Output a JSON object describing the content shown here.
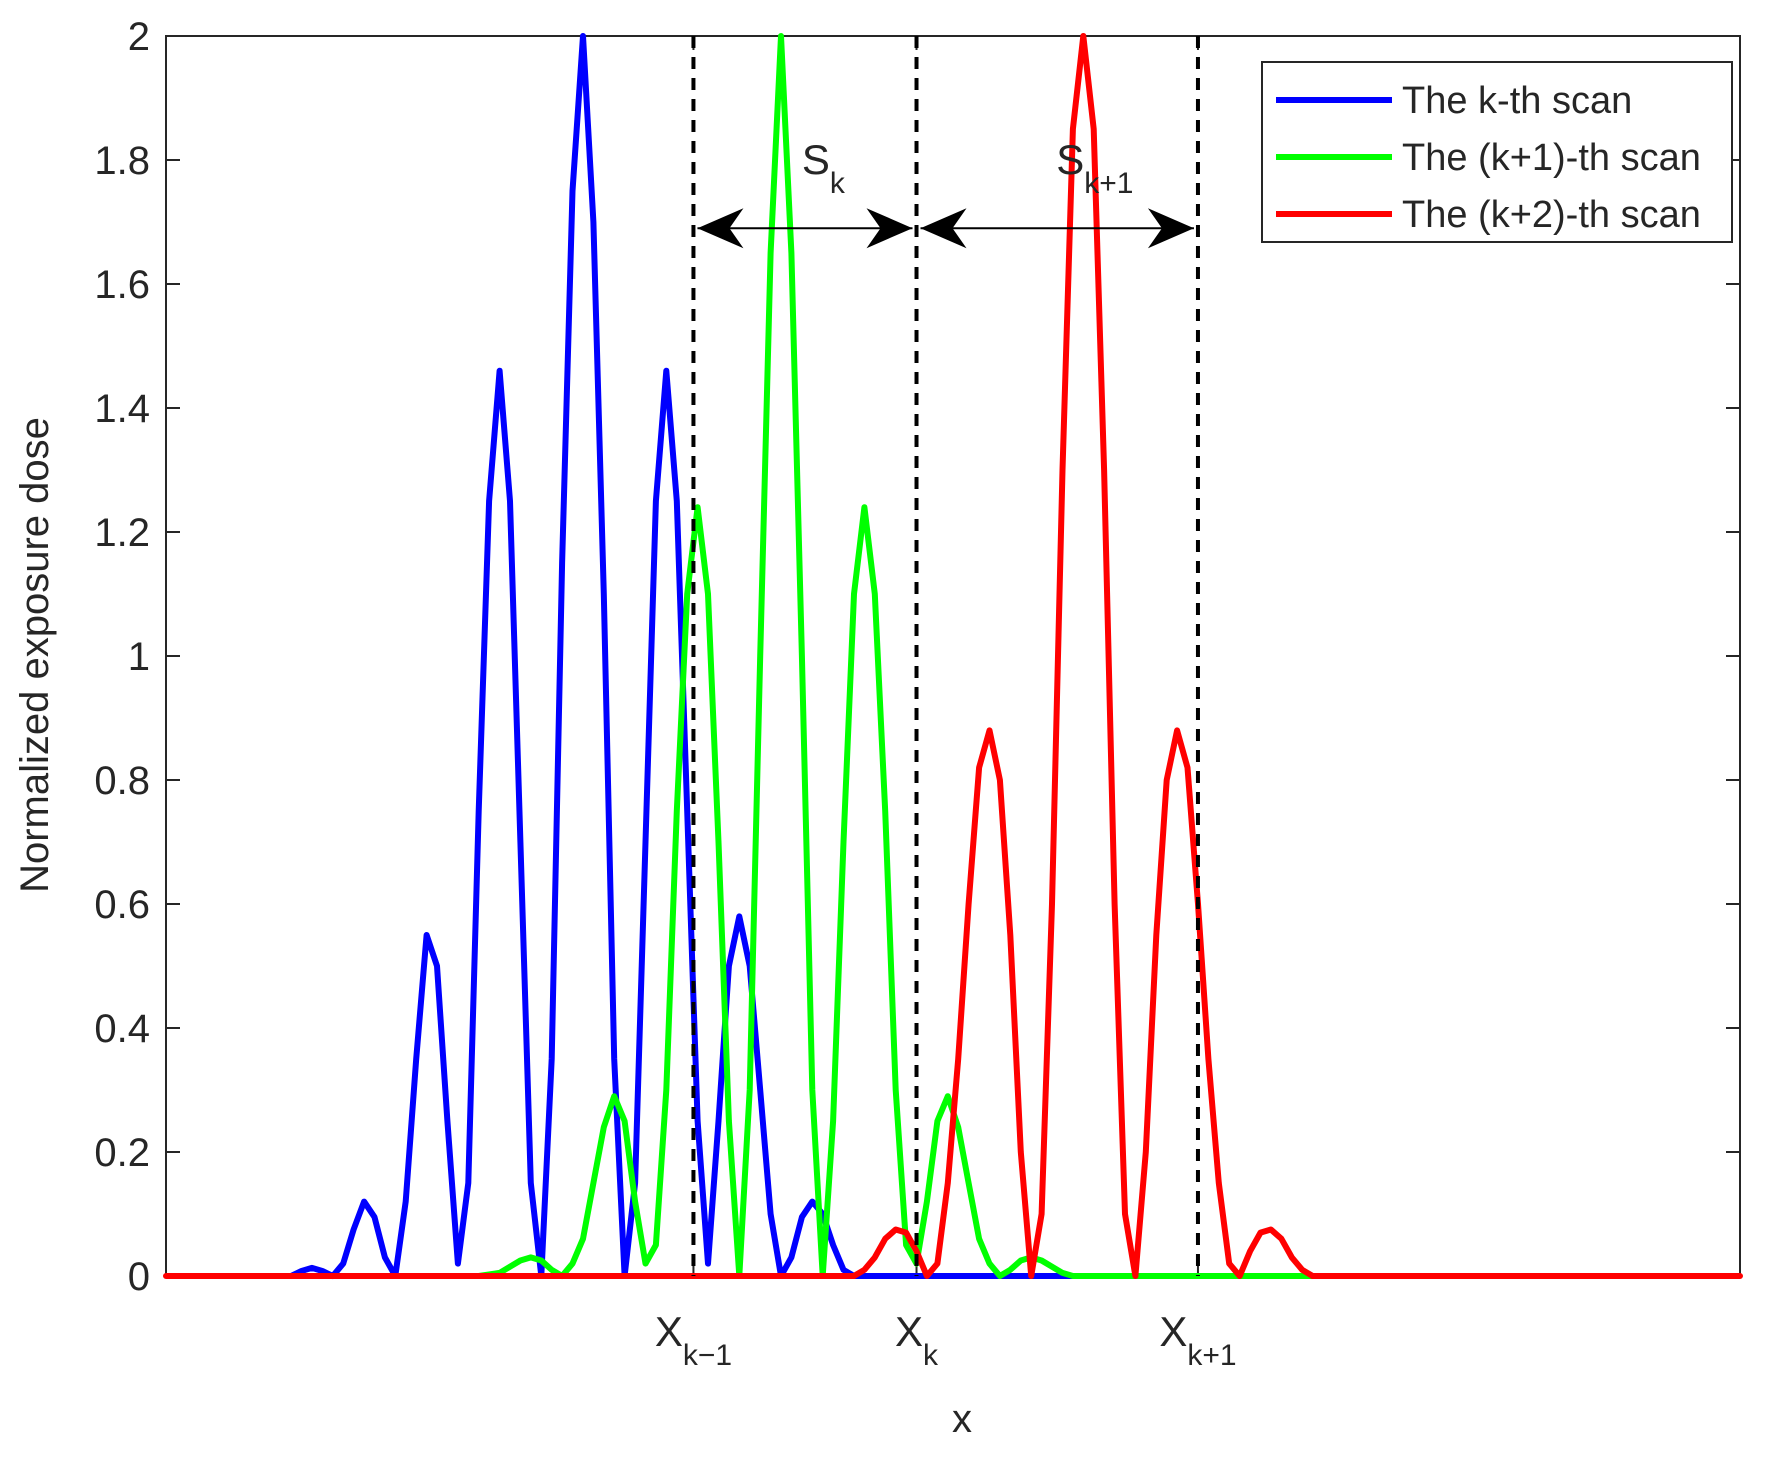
{
  "chart_data": {
    "type": "line",
    "title": "",
    "xlabel": "x",
    "ylabel": "Normalized exposure dose",
    "xlim": [
      -3.6,
      3.95
    ],
    "ylim": [
      0,
      2
    ],
    "yticks": [
      0,
      0.2,
      0.4,
      0.6,
      0.8,
      1,
      1.2,
      1.4,
      1.6,
      1.8,
      2
    ],
    "ytick_labels": [
      "0",
      "0.2",
      "0.4",
      "0.6",
      "0.8",
      "1",
      "1.2",
      "1.4",
      "1.6",
      "1.8",
      "2"
    ],
    "xticks": [
      {
        "x": -1.07,
        "base": "X",
        "sub": "k−1"
      },
      {
        "x": 0,
        "base": "X",
        "sub": "k"
      },
      {
        "x": 1.35,
        "base": "X",
        "sub": "k+1"
      }
    ],
    "grid": false,
    "legend_position": "top-right",
    "series": [
      {
        "name": "The k-th scan",
        "color": "#0000ff",
        "x": [
          -3.0,
          -2.95,
          -2.9,
          -2.85,
          -2.8,
          -2.75,
          -2.7,
          -2.65,
          -2.6,
          -2.55,
          -2.5,
          -2.45,
          -2.4,
          -2.35,
          -2.3,
          -2.25,
          -2.2,
          -2.15,
          -2.1,
          -2.05,
          -2.0,
          -1.95,
          -1.9,
          -1.85,
          -1.8,
          -1.75,
          -1.7,
          -1.65,
          -1.6,
          -1.55,
          -1.5,
          -1.45,
          -1.4,
          -1.35,
          -1.3,
          -1.25,
          -1.2,
          -1.15,
          -1.1,
          -1.07,
          -1.05,
          -1.0,
          -0.95,
          -0.9,
          -0.85,
          -0.8,
          -0.75,
          -0.7,
          -0.65,
          -0.6,
          -0.55,
          -0.5,
          -0.45,
          -0.4,
          -0.35,
          -0.3,
          -0.25,
          -0.2,
          -0.15,
          -0.1,
          -0.05,
          0.0,
          0.05,
          0.1,
          0.15,
          0.2,
          0.25,
          0.3,
          0.35,
          0.4,
          0.45,
          0.5,
          0.55,
          0.6,
          0.65,
          0.7,
          0.75,
          0.8,
          0.85,
          0.9,
          0.95,
          1.0,
          1.05,
          1.1,
          1.15,
          1.2,
          1.25,
          1.3,
          1.35,
          1.4
        ],
        "y": [
          0.0,
          0.008,
          0.013,
          0.008,
          0.0,
          0.02,
          0.075,
          0.12,
          0.095,
          0.03,
          0.0,
          0.12,
          0.35,
          0.55,
          0.5,
          0.25,
          0.02,
          0.15,
          0.75,
          1.25,
          1.46,
          1.25,
          0.7,
          0.15,
          0.0,
          0.35,
          1.15,
          1.75,
          2.0,
          1.7,
          1.1,
          0.35,
          0.0,
          0.15,
          0.7,
          1.25,
          1.46,
          1.25,
          0.75,
          0.45,
          0.25,
          0.02,
          0.25,
          0.5,
          0.58,
          0.5,
          0.3,
          0.1,
          0.0,
          0.03,
          0.095,
          0.12,
          0.1,
          0.05,
          0.01,
          0.0,
          0.0,
          0.0,
          0.0,
          0.0,
          0.0,
          0.0,
          0.0,
          0.0,
          0.0,
          0.0,
          0.0,
          0.0,
          0.0,
          0.0,
          0.0,
          0.0,
          0.0,
          0.0,
          0.0,
          0.0,
          0.0,
          0.0,
          0.0,
          0.0,
          0.0,
          0.0,
          0.0,
          0.0,
          0.0,
          0.0,
          0.0,
          0.0,
          0.0,
          0.0
        ]
      },
      {
        "name": "The (k+1)-th scan",
        "color": "#00ff00",
        "x": [
          -2.3,
          -2.2,
          -2.1,
          -2.0,
          -1.95,
          -1.9,
          -1.85,
          -1.8,
          -1.75,
          -1.7,
          -1.65,
          -1.6,
          -1.55,
          -1.5,
          -1.45,
          -1.4,
          -1.35,
          -1.3,
          -1.25,
          -1.2,
          -1.15,
          -1.1,
          -1.05,
          -1.0,
          -0.95,
          -0.9,
          -0.85,
          -0.8,
          -0.75,
          -0.7,
          -0.65,
          -0.6,
          -0.55,
          -0.5,
          -0.45,
          -0.4,
          -0.35,
          -0.3,
          -0.25,
          -0.2,
          -0.15,
          -0.1,
          -0.05,
          0.0,
          0.05,
          0.1,
          0.15,
          0.2,
          0.25,
          0.3,
          0.35,
          0.4,
          0.45,
          0.5,
          0.55,
          0.6,
          0.65,
          0.7,
          0.75,
          0.8,
          0.85,
          0.9,
          0.95,
          1.0,
          1.05,
          1.1,
          1.15,
          1.2,
          1.25,
          1.3,
          1.35,
          1.4,
          1.45,
          1.5,
          1.55,
          1.6,
          1.65,
          1.7,
          1.75,
          1.8,
          1.85,
          1.9,
          1.95,
          2.0,
          2.1,
          2.2,
          2.3
        ],
        "y": [
          0.0,
          0.0,
          0.0,
          0.005,
          0.015,
          0.025,
          0.03,
          0.025,
          0.01,
          0.0,
          0.02,
          0.06,
          0.15,
          0.24,
          0.29,
          0.25,
          0.12,
          0.02,
          0.05,
          0.3,
          0.75,
          1.1,
          1.24,
          1.1,
          0.7,
          0.25,
          0.0,
          0.3,
          1.0,
          1.65,
          2.0,
          1.65,
          1.0,
          0.3,
          0.0,
          0.25,
          0.7,
          1.1,
          1.24,
          1.1,
          0.75,
          0.3,
          0.05,
          0.02,
          0.12,
          0.25,
          0.29,
          0.24,
          0.15,
          0.06,
          0.02,
          0.0,
          0.01,
          0.025,
          0.03,
          0.025,
          0.015,
          0.005,
          0.0,
          0.0,
          0.0,
          0.0,
          0.0,
          0.0,
          0.0,
          0.0,
          0.0,
          0.0,
          0.0,
          0.0,
          0.0,
          0.0,
          0.0,
          0.0,
          0.0,
          0.0,
          0.0,
          0.0,
          0.0,
          0.0,
          0.0,
          0.0,
          0.0,
          0.0,
          0.0,
          0.0,
          0.0
        ]
      },
      {
        "name": "The (k+2)-th scan",
        "color": "#ff0000",
        "x": [
          -3.6,
          -3.4,
          -3.2,
          -3.0,
          -2.8,
          -2.6,
          -2.4,
          -2.2,
          -2.0,
          -1.8,
          -1.6,
          -1.4,
          -1.2,
          -1.0,
          -0.9,
          -0.8,
          -0.7,
          -0.6,
          -0.5,
          -0.45,
          -0.4,
          -0.35,
          -0.3,
          -0.25,
          -0.2,
          -0.15,
          -0.1,
          -0.05,
          0.0,
          0.05,
          0.1,
          0.15,
          0.2,
          0.25,
          0.3,
          0.35,
          0.4,
          0.45,
          0.5,
          0.55,
          0.6,
          0.65,
          0.7,
          0.75,
          0.8,
          0.85,
          0.9,
          0.95,
          1.0,
          1.05,
          1.1,
          1.15,
          1.2,
          1.25,
          1.3,
          1.35,
          1.4,
          1.45,
          1.5,
          1.55,
          1.6,
          1.65,
          1.7,
          1.75,
          1.8,
          1.85,
          1.9,
          1.95,
          2.0,
          2.05,
          2.1,
          2.15,
          2.2,
          2.25,
          2.3,
          2.35,
          2.4,
          2.45,
          2.5,
          2.55,
          2.6,
          2.65,
          2.7,
          2.75,
          2.8,
          2.85,
          2.9,
          2.95,
          3.0,
          3.05,
          3.1,
          3.15,
          3.2,
          3.25,
          3.3,
          3.35,
          3.4,
          3.45,
          3.5,
          3.6,
          3.7,
          3.8,
          3.95
        ],
        "y": [
          0.0,
          0.0,
          0.0,
          0.0,
          0.0,
          0.0,
          0.0,
          0.0,
          0.0,
          0.0,
          0.0,
          0.0,
          0.0,
          0.0,
          0.0,
          0.0,
          0.0,
          0.0,
          0.0,
          0.0,
          0.0,
          0.0,
          0.0,
          0.01,
          0.03,
          0.06,
          0.075,
          0.07,
          0.04,
          0.0,
          0.02,
          0.15,
          0.35,
          0.6,
          0.82,
          0.88,
          0.8,
          0.55,
          0.2,
          0.0,
          0.1,
          0.6,
          1.3,
          1.85,
          2.0,
          1.85,
          1.3,
          0.6,
          0.1,
          0.0,
          0.2,
          0.55,
          0.8,
          0.88,
          0.82,
          0.6,
          0.35,
          0.15,
          0.02,
          0.0,
          0.04,
          0.07,
          0.075,
          0.06,
          0.03,
          0.01,
          0.0,
          0.0,
          0.0,
          0.0,
          0.0,
          0.0,
          0.0,
          0.0,
          0.0,
          0.0,
          0.0,
          0.0,
          0.0,
          0.0,
          0.0,
          0.0,
          0.0,
          0.0,
          0.0,
          0.0,
          0.0,
          0.0,
          0.0,
          0.0,
          0.0,
          0.0,
          0.0,
          0.0,
          0.0,
          0.0,
          0.0,
          0.0,
          0.0,
          0.0,
          0.0,
          0.0,
          0.0
        ]
      }
    ],
    "vertical_lines": [
      -1.07,
      0,
      1.35
    ],
    "arrow_y": 1.69,
    "annotations": [
      {
        "base": "S",
        "sub": "k",
        "x": -0.55,
        "y": 1.8
      },
      {
        "base": "S",
        "sub": "k+1",
        "x": 0.67,
        "y": 1.8
      }
    ]
  }
}
